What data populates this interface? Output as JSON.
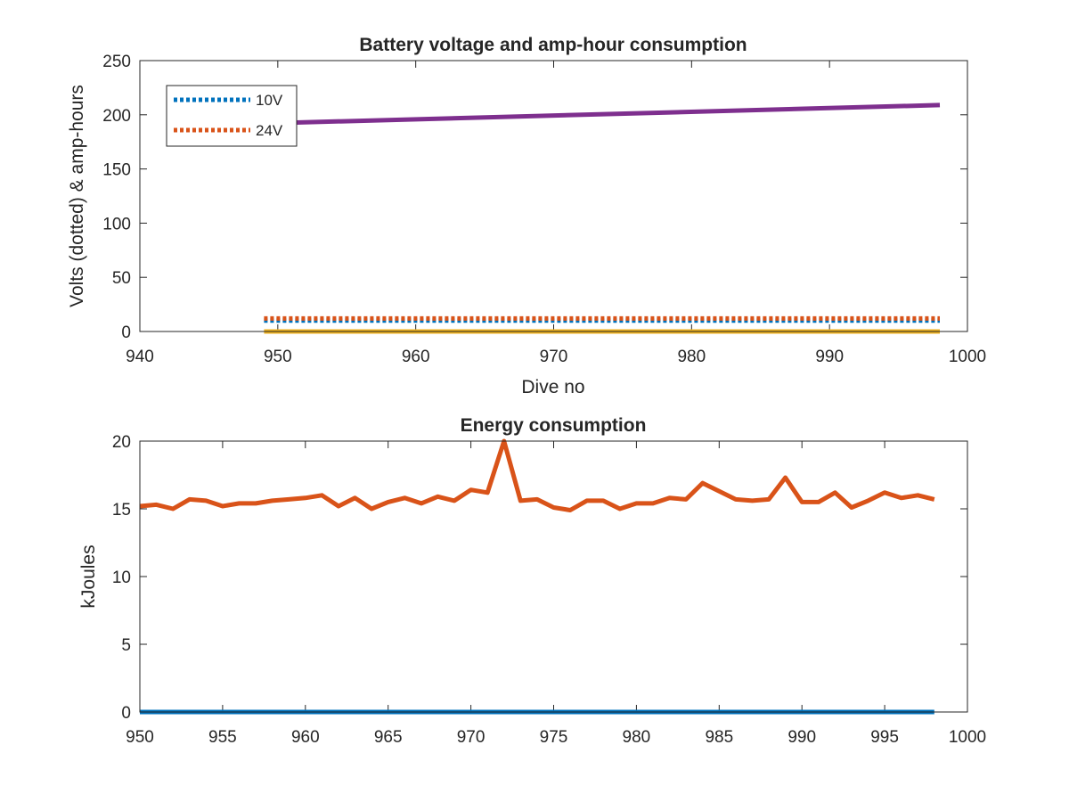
{
  "chart_data": [
    {
      "type": "line",
      "title": "Battery voltage and amp-hour consumption",
      "xlabel": "Dive no",
      "ylabel": "Volts (dotted) & amp-hours",
      "xlim": [
        940,
        1000
      ],
      "ylim": [
        0,
        250
      ],
      "xticks": [
        940,
        950,
        960,
        970,
        980,
        990,
        1000
      ],
      "yticks": [
        0,
        50,
        100,
        150,
        200,
        250
      ],
      "legend_placement": "top-left",
      "series": [
        {
          "name": "10V",
          "style": "dotted",
          "color": "#0072BD",
          "x": [
            949,
            998
          ],
          "y": [
            10,
            10
          ]
        },
        {
          "name": "24V",
          "style": "dotted",
          "color": "#D95319",
          "x": [
            949,
            998
          ],
          "y": [
            12,
            12
          ]
        },
        {
          "style": "solid",
          "color": "#EDB120",
          "x": [
            949,
            998
          ],
          "y": [
            0,
            0
          ]
        },
        {
          "style": "solid",
          "color": "#7E2F8E",
          "x": [
            949,
            998
          ],
          "y": [
            192,
            209
          ]
        }
      ]
    },
    {
      "type": "line",
      "title": "Energy consumption",
      "xlabel": "",
      "ylabel": "kJoules",
      "xlim": [
        950,
        1000
      ],
      "ylim": [
        0,
        20
      ],
      "xticks": [
        950,
        955,
        960,
        965,
        970,
        975,
        980,
        985,
        990,
        995,
        1000
      ],
      "yticks": [
        0,
        5,
        10,
        15,
        20
      ],
      "series": [
        {
          "style": "solid",
          "color": "#0072BD",
          "x": [
            950,
            998
          ],
          "y": [
            0,
            0
          ]
        },
        {
          "style": "solid",
          "color": "#D95319",
          "x": [
            950,
            951,
            952,
            953,
            954,
            955,
            956,
            957,
            958,
            959,
            960,
            961,
            962,
            963,
            964,
            965,
            966,
            967,
            968,
            969,
            970,
            971,
            972,
            973,
            974,
            975,
            976,
            977,
            978,
            979,
            980,
            981,
            982,
            983,
            984,
            985,
            986,
            987,
            988,
            989,
            990,
            991,
            992,
            993,
            994,
            995,
            996,
            997,
            998
          ],
          "y": [
            15.2,
            15.3,
            15.0,
            15.7,
            15.6,
            15.2,
            15.4,
            15.4,
            15.6,
            15.7,
            15.8,
            16.0,
            15.2,
            15.8,
            15.0,
            15.5,
            15.8,
            15.4,
            15.9,
            15.6,
            16.4,
            16.2,
            20.0,
            15.6,
            15.7,
            15.1,
            14.9,
            15.6,
            15.6,
            15.0,
            15.4,
            15.4,
            15.8,
            15.7,
            16.9,
            16.3,
            15.7,
            15.6,
            15.7,
            17.3,
            15.5,
            15.5,
            16.2,
            15.1,
            15.6,
            16.2,
            15.8,
            16.0,
            15.7
          ]
        }
      ]
    }
  ]
}
